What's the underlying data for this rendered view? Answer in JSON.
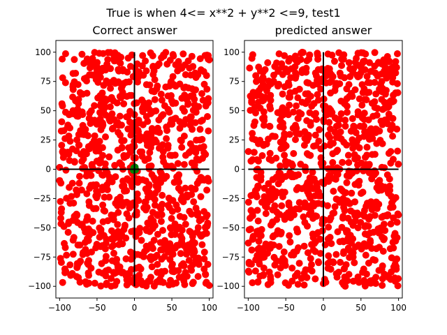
{
  "figure": {
    "suptitle": "True is when 4<= x**2 + y**2 <=9, test1"
  },
  "colors": {
    "false_class": "#ff0000",
    "true_class": "#008000",
    "axes_lines": "#000000"
  },
  "chart_data": [
    {
      "type": "scatter",
      "title": "Correct answer",
      "xlabel": "",
      "ylabel": "",
      "xlim": [
        -105,
        105
      ],
      "ylim": [
        -110,
        110
      ],
      "xticks": [
        -100,
        -50,
        0,
        50,
        100
      ],
      "yticks": [
        -100,
        -75,
        -50,
        -25,
        0,
        25,
        50,
        75,
        100
      ],
      "grid": false,
      "reference_lines": {
        "x": 0,
        "y": 0,
        "x_range": [
          -100,
          100
        ],
        "y_range": [
          -100,
          100
        ]
      },
      "series": [
        {
          "marker_color": "#ff0000",
          "n_points": 1000,
          "x_range": [
            -100,
            100
          ],
          "y_range": [
            -100,
            100
          ],
          "distribution": "uniform random"
        },
        {
          "marker_color": "#008000",
          "points": [
            [
              0.5,
              0.2
            ],
            [
              -0.8,
              1.1
            ],
            [
              1.4,
              -0.6
            ],
            [
              -1.2,
              -0.9
            ],
            [
              0.9,
              1.8
            ]
          ]
        }
      ]
    },
    {
      "type": "scatter",
      "title": "predicted answer",
      "xlabel": "",
      "ylabel": "",
      "xlim": [
        -105,
        105
      ],
      "ylim": [
        -110,
        110
      ],
      "xticks": [
        -100,
        -50,
        0,
        50,
        100
      ],
      "yticks": [
        -100,
        -75,
        -50,
        -25,
        0,
        25,
        50,
        75,
        100
      ],
      "grid": false,
      "reference_lines": {
        "x": 0,
        "y": 0,
        "x_range": [
          -100,
          100
        ],
        "y_range": [
          -100,
          100
        ]
      },
      "series": [
        {
          "marker_color": "#ff0000",
          "n_points": 1000,
          "x_range": [
            -100,
            100
          ],
          "y_range": [
            -100,
            100
          ],
          "distribution": "uniform random"
        }
      ]
    }
  ]
}
